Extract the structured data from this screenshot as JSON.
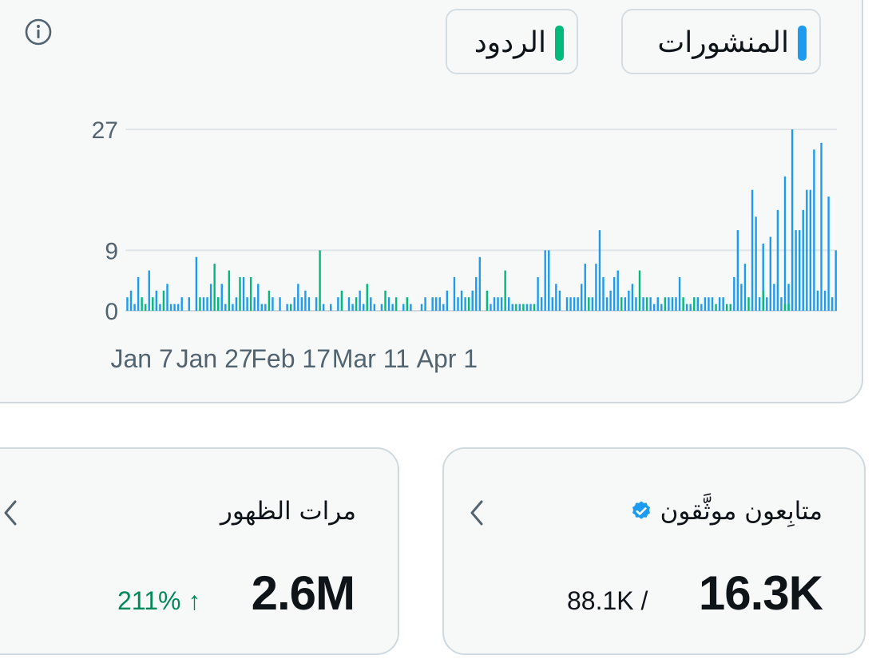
{
  "legend": {
    "posts_label": "المنشورات",
    "replies_label": "الردود",
    "posts_color": "#1d9bf0",
    "replies_color": "#00ba7c"
  },
  "chart_data": {
    "type": "bar",
    "y_ticks": [
      "27",
      "9",
      "0"
    ],
    "ylim": [
      0,
      27
    ],
    "x_tick_labels": [
      "Jan 7",
      "Jan 27",
      "Feb 17",
      "Mar 11",
      "Apr 1"
    ],
    "x_tick_days": [
      3,
      23,
      44,
      66,
      87
    ],
    "x_range_days": [
      -1,
      90
    ],
    "grid": true,
    "series": [
      {
        "name": "المنشورات",
        "color": "#1d9bf0",
        "points": [
          [
            -1,
            2
          ],
          [
            0,
            3
          ],
          [
            1,
            1
          ],
          [
            2,
            5
          ],
          [
            5,
            6
          ],
          [
            7,
            3
          ],
          [
            8,
            1
          ],
          [
            10,
            4
          ],
          [
            11,
            1
          ],
          [
            12,
            1
          ],
          [
            13,
            1
          ],
          [
            14,
            2
          ],
          [
            16,
            2
          ],
          [
            18,
            8
          ],
          [
            20,
            2
          ],
          [
            21,
            2
          ],
          [
            22,
            4
          ],
          [
            24,
            2
          ],
          [
            25,
            4
          ],
          [
            26,
            1
          ],
          [
            28,
            1
          ],
          [
            29,
            2
          ],
          [
            31,
            5
          ],
          [
            32,
            2
          ],
          [
            34,
            2
          ],
          [
            35,
            4
          ],
          [
            36,
            1
          ],
          [
            37,
            1
          ],
          [
            39,
            2
          ],
          [
            41,
            2
          ],
          [
            43,
            1
          ],
          [
            45,
            2
          ],
          [
            46,
            4
          ],
          [
            47,
            2
          ],
          [
            48,
            3
          ],
          [
            49,
            2
          ],
          [
            51,
            2
          ],
          [
            53,
            1
          ],
          [
            55,
            1
          ],
          [
            57,
            2
          ],
          [
            60,
            2
          ],
          [
            61,
            1
          ],
          [
            63,
            3
          ],
          [
            64,
            1
          ],
          [
            66,
            2
          ],
          [
            67,
            1
          ],
          [
            69,
            1
          ],
          [
            71,
            2
          ],
          [
            72,
            1
          ],
          [
            75,
            1
          ],
          [
            77,
            1
          ],
          [
            80,
            1
          ],
          [
            81,
            2
          ],
          [
            83,
            2
          ],
          [
            84,
            2
          ],
          [
            85,
            2
          ],
          [
            86,
            1
          ],
          [
            87,
            3
          ],
          [
            89,
            5
          ],
          [
            90,
            2
          ],
          [
            91,
            3
          ],
          [
            92,
            2
          ],
          [
            94,
            3
          ],
          [
            95,
            5
          ],
          [
            96,
            8
          ],
          [
            99,
            1
          ],
          [
            100,
            2
          ],
          [
            101,
            2
          ],
          [
            102,
            2
          ],
          [
            104,
            2
          ],
          [
            105,
            1
          ],
          [
            107,
            1
          ],
          [
            109,
            1
          ],
          [
            110,
            1
          ],
          [
            112,
            5
          ],
          [
            113,
            2
          ],
          [
            114,
            9
          ],
          [
            115,
            9
          ],
          [
            116,
            2
          ],
          [
            117,
            4
          ],
          [
            118,
            3
          ],
          [
            120,
            2
          ],
          [
            121,
            2
          ],
          [
            122,
            2
          ],
          [
            123,
            2
          ],
          [
            124,
            4
          ],
          [
            125,
            7
          ],
          [
            127,
            2
          ],
          [
            128,
            7
          ],
          [
            129,
            12
          ],
          [
            130,
            5
          ],
          [
            131,
            2
          ],
          [
            132,
            3
          ],
          [
            133,
            5
          ],
          [
            134,
            6
          ],
          [
            136,
            2
          ],
          [
            137,
            3
          ],
          [
            138,
            4
          ],
          [
            139,
            2
          ],
          [
            141,
            2
          ],
          [
            143,
            2
          ],
          [
            144,
            1
          ],
          [
            145,
            2
          ],
          [
            146,
            1
          ],
          [
            148,
            2
          ],
          [
            149,
            2
          ],
          [
            150,
            2
          ],
          [
            151,
            5
          ],
          [
            153,
            1
          ],
          [
            154,
            1
          ],
          [
            156,
            2
          ],
          [
            157,
            1
          ],
          [
            158,
            2
          ],
          [
            159,
            2
          ],
          [
            160,
            2
          ],
          [
            162,
            2
          ],
          [
            163,
            2
          ],
          [
            166,
            5
          ],
          [
            167,
            12
          ],
          [
            168,
            4
          ],
          [
            169,
            7
          ],
          [
            171,
            18
          ],
          [
            172,
            14
          ],
          [
            173,
            2
          ],
          [
            174,
            10
          ],
          [
            175,
            2
          ],
          [
            176,
            11
          ],
          [
            177,
            4
          ],
          [
            178,
            15
          ],
          [
            179,
            2
          ],
          [
            180,
            20
          ],
          [
            181,
            4
          ],
          [
            182,
            27
          ],
          [
            183,
            12
          ],
          [
            184,
            12
          ],
          [
            185,
            15
          ],
          [
            186,
            18
          ],
          [
            187,
            18
          ],
          [
            188,
            24
          ],
          [
            189,
            3
          ],
          [
            190,
            25
          ],
          [
            191,
            3
          ],
          [
            192,
            17
          ],
          [
            193,
            2
          ],
          [
            194,
            9
          ]
        ]
      },
      {
        "name": "الردود",
        "color": "#00ba7c",
        "points": [
          [
            3,
            2
          ],
          [
            4,
            1
          ],
          [
            6,
            2
          ],
          [
            9,
            3
          ],
          [
            19,
            2
          ],
          [
            23,
            7
          ],
          [
            24,
            2
          ],
          [
            27,
            6
          ],
          [
            30,
            5
          ],
          [
            33,
            5
          ],
          [
            38,
            3
          ],
          [
            44,
            1
          ],
          [
            52,
            9
          ],
          [
            58,
            3
          ],
          [
            62,
            2
          ],
          [
            65,
            4
          ],
          [
            70,
            3
          ],
          [
            73,
            2
          ],
          [
            76,
            2
          ],
          [
            93,
            2
          ],
          [
            98,
            3
          ],
          [
            103,
            6
          ],
          [
            106,
            1
          ],
          [
            108,
            1
          ],
          [
            111,
            1
          ],
          [
            126,
            2
          ],
          [
            135,
            2
          ],
          [
            140,
            6
          ],
          [
            142,
            2
          ],
          [
            147,
            2
          ],
          [
            152,
            2
          ],
          [
            155,
            2
          ],
          [
            161,
            1
          ],
          [
            164,
            1
          ],
          [
            165,
            1
          ],
          [
            170,
            2
          ],
          [
            174,
            3
          ],
          [
            180,
            1
          ],
          [
            181,
            1
          ]
        ]
      }
    ]
  },
  "followers_card": {
    "title": "متابِعون موثَّقون",
    "value": "16.3K",
    "total": "88.1K /"
  },
  "impressions_card": {
    "title": "مرات الظهور",
    "value": "2.6M",
    "change": "211% ↑"
  }
}
